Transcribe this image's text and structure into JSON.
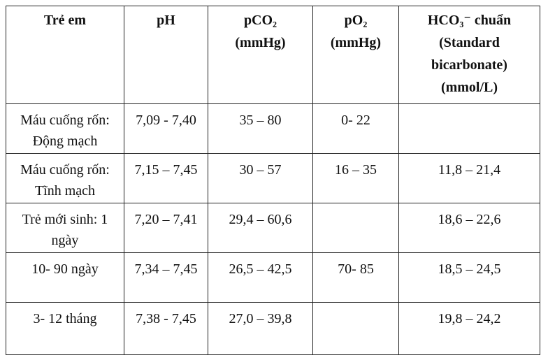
{
  "table": {
    "header": [
      [
        "Trẻ em"
      ],
      [
        "pH"
      ],
      [
        "pCO₂",
        "(mmHg)"
      ],
      [
        "pO₂",
        "(mmHg)"
      ],
      [
        "HCO₃⁻ chuẩn",
        "(Standard bicarbonate)",
        "(mmol/L)"
      ]
    ],
    "rows": [
      [
        "Máu cuống rốn: Động mạch",
        "7,09 - 7,40",
        "35 – 80",
        "0- 22",
        null
      ],
      [
        "Máu cuống rốn: Tĩnh mạch",
        "7,15 – 7,45",
        "30 – 57",
        "16 – 35",
        "11,8 – 21,4"
      ],
      [
        "Trẻ mới sinh: 1 ngày",
        "7,20 – 7,41",
        "29,4 – 60,6",
        null,
        "18,6 – 22,6"
      ],
      [
        "10- 90 ngày",
        "7,34 – 7,45",
        "26,5 – 42,5",
        "70- 85",
        "18,5 – 24,5"
      ],
      [
        "3- 12 tháng",
        "7,38 - 7,45",
        "27,0 – 39,8",
        null,
        "19,8 – 24,2"
      ]
    ]
  }
}
